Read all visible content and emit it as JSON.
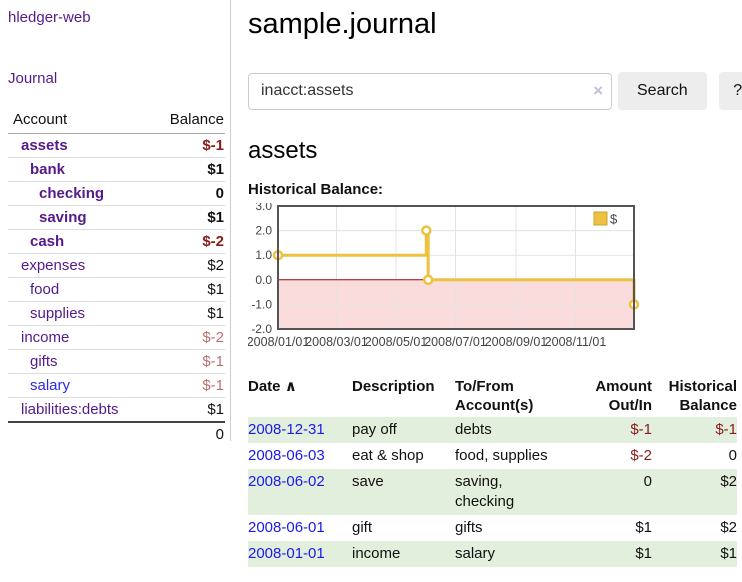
{
  "app": {
    "brand": "hledger-web"
  },
  "sidebar": {
    "journal_link": "Journal",
    "table": {
      "account_header": "Account",
      "balance_header": "Balance"
    },
    "accounts": [
      {
        "name": "assets",
        "indent": 1,
        "bold": true,
        "balance": "$-1",
        "balance_style": "neg-strong"
      },
      {
        "name": "bank",
        "indent": 2,
        "bold": true,
        "balance": "$1",
        "balance_style": "pos"
      },
      {
        "name": "checking",
        "indent": 3,
        "bold": true,
        "balance": "0",
        "balance_style": "pos"
      },
      {
        "name": "saving",
        "indent": 3,
        "bold": true,
        "balance": "$1",
        "balance_style": "pos"
      },
      {
        "name": "cash",
        "indent": 2,
        "bold": true,
        "balance": "$-2",
        "balance_style": "neg-strong"
      },
      {
        "name": "expenses",
        "indent": 1,
        "bold": false,
        "balance": "$2",
        "balance_style": "pos"
      },
      {
        "name": "food",
        "indent": 2,
        "bold": false,
        "balance": "$1",
        "balance_style": "pos"
      },
      {
        "name": "supplies",
        "indent": 2,
        "bold": false,
        "balance": "$1",
        "balance_style": "pos"
      },
      {
        "name": "income",
        "indent": 1,
        "bold": false,
        "balance": "$-2",
        "balance_style": "neg-soft"
      },
      {
        "name": "gifts",
        "indent": 2,
        "bold": false,
        "balance": "$-1",
        "balance_style": "neg-soft"
      },
      {
        "name": "salary",
        "indent": 2,
        "bold": false,
        "balance": "$-1",
        "balance_style": "neg-soft",
        "link_style": "blue"
      },
      {
        "name": "liabilities:debts",
        "indent": 1,
        "bold": false,
        "balance": "$1",
        "balance_style": "pos"
      }
    ],
    "total": "0"
  },
  "header": {
    "title": "sample.journal"
  },
  "search": {
    "query": "inacct:assets",
    "clear_icon": "×",
    "button_label": "Search",
    "help_label": "?"
  },
  "account_page": {
    "heading": "assets",
    "chart_title": "Historical Balance:"
  },
  "chart_data": {
    "type": "line",
    "title": "Historical Balance:",
    "x_start": "2008-01-01",
    "x_end": "2008-12-31",
    "x_tick_dates": [
      "2008-01-01",
      "2008-03-01",
      "2008-05-01",
      "2008-07-01",
      "2008-09-01",
      "2008-11-01"
    ],
    "x_tick_labels": [
      "2008/01/01",
      "2008/03/01",
      "2008/05/01",
      "2008/07/01",
      "2008/09/01",
      "2008/11/01"
    ],
    "y_ticks": [
      3,
      2,
      1,
      0,
      -1,
      -2
    ],
    "ylim": [
      -2,
      3
    ],
    "grid": true,
    "legend_position": "top-right",
    "series": [
      {
        "name": "$",
        "color": "#EDC240",
        "step": true,
        "points": [
          [
            "2008-01-01",
            1
          ],
          [
            "2008-06-01",
            2
          ],
          [
            "2008-06-03",
            0
          ],
          [
            "2008-12-31",
            -1
          ]
        ]
      }
    ],
    "negative_region_color": "#fbdcdc",
    "zero_line_color": "#a40000",
    "grid_color": "#e3e3e3",
    "border_color": "#545454"
  },
  "register": {
    "columns": {
      "date": "Date",
      "description": "Description",
      "accounts": "To/From Account(s)",
      "amount": "Amount Out/In",
      "balance": "Historical Balance"
    },
    "sort_indicator": "∧",
    "rows": [
      {
        "date": "2008-12-31",
        "description": "pay off",
        "accounts": "debts",
        "amount": "$-1",
        "amount_neg": true,
        "balance": "$-1",
        "balance_neg": true
      },
      {
        "date": "2008-06-03",
        "description": "eat & shop",
        "accounts": "food, supplies",
        "amount": "$-2",
        "amount_neg": true,
        "balance": "0",
        "balance_neg": false
      },
      {
        "date": "2008-06-02",
        "description": "save",
        "accounts": "saving,\nchecking",
        "amount": "0",
        "amount_neg": false,
        "balance": "$2",
        "balance_neg": false
      },
      {
        "date": "2008-06-01",
        "description": "gift",
        "accounts": "gifts",
        "amount": "$1",
        "amount_neg": false,
        "balance": "$2",
        "balance_neg": false
      },
      {
        "date": "2008-01-01",
        "description": "income",
        "accounts": "salary",
        "amount": "$1",
        "amount_neg": false,
        "balance": "$1",
        "balance_neg": false
      }
    ]
  }
}
